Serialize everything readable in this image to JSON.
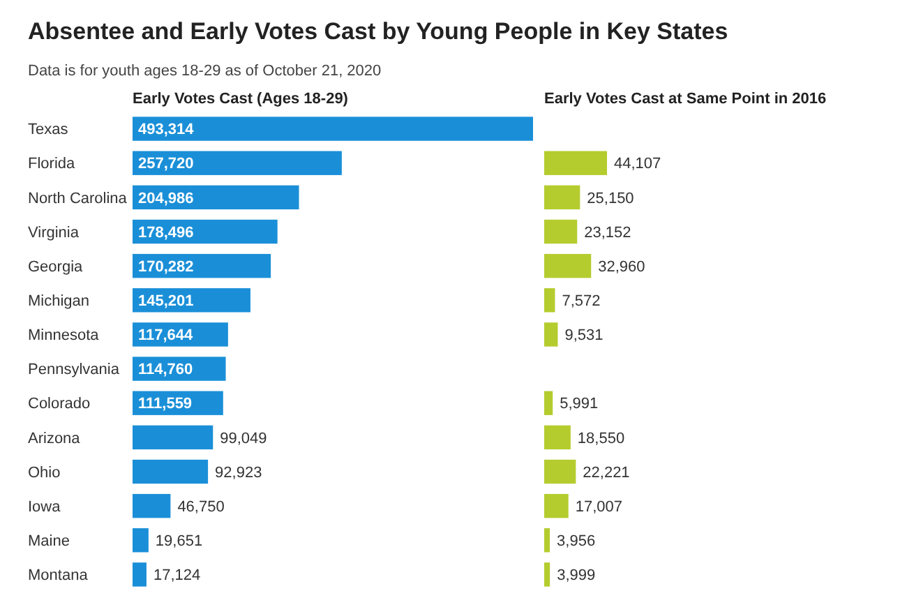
{
  "chart_data": [
    {
      "type": "bar",
      "orientation": "horizontal",
      "title": "Absentee and Early Votes Cast by Young People in Key States",
      "subtitle": "Data is for youth ages 18-29 as of October 21, 2020",
      "xlabel": "Early Votes Cast (Ages 18-29)",
      "categories": [
        "Texas",
        "Florida",
        "North Carolina",
        "Virginia",
        "Georgia",
        "Michigan",
        "Minnesota",
        "Pennsylvania",
        "Colorado",
        "Arizona",
        "Ohio",
        "Iowa",
        "Maine",
        "Montana"
      ],
      "values": [
        493314,
        257720,
        204986,
        178496,
        170282,
        145201,
        117644,
        114760,
        111559,
        99049,
        92923,
        46750,
        19651,
        17124
      ],
      "color": "#1a8fd8",
      "value_labels": [
        "493,314",
        "257,720",
        "204,986",
        "178,496",
        "170,282",
        "145,201",
        "117,644",
        "114,760",
        "111,559",
        "99,049",
        "92,923",
        "46,750",
        "19,651",
        "17,124"
      ]
    },
    {
      "type": "bar",
      "orientation": "horizontal",
      "xlabel": "Early Votes Cast at Same Point in 2016",
      "categories": [
        null,
        null,
        null,
        null,
        null,
        null,
        null,
        null,
        null,
        null,
        null,
        null,
        null,
        null
      ],
      "values": [
        null,
        44107,
        25150,
        23152,
        32960,
        7572,
        9531,
        null,
        5991,
        18550,
        22221,
        17007,
        3956,
        3999
      ],
      "color": "#b5cc2e",
      "value_labels": [
        null,
        "44,107",
        "25,150",
        "23,152",
        "32,960",
        "7,572",
        "9,531",
        null,
        "5,991",
        "18,550",
        "22,221",
        "17,007",
        "3,956",
        "3,999"
      ]
    }
  ]
}
